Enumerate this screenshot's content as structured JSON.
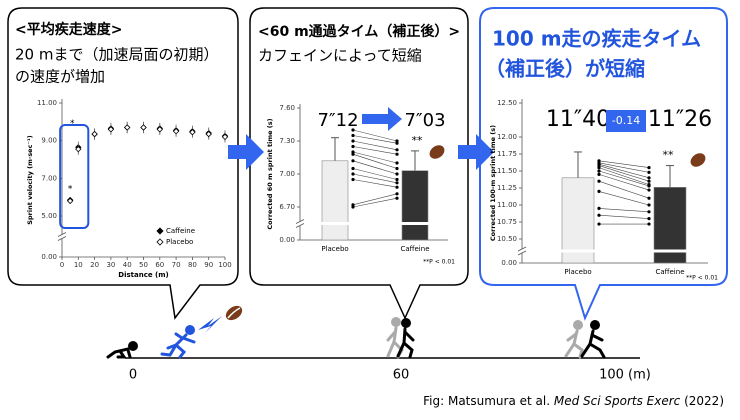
{
  "chart_data": [
    {
      "type": "scatter",
      "title": "<平均疾走速度>",
      "subtitle": [
        "20 mまで（加速局面の初期）",
        "の速度が増加"
      ],
      "x_label": "Distance (m)",
      "y_label": "Sprint velocity (m·sec⁻¹)",
      "x": [
        5,
        10,
        20,
        30,
        40,
        50,
        60,
        70,
        80,
        90,
        100
      ],
      "series": [
        {
          "name": "Caffeine",
          "color": "#000000",
          "marker": "filled",
          "values": [
            5.85,
            8.65,
            9.35,
            9.65,
            9.7,
            9.7,
            9.65,
            9.55,
            9.5,
            9.4,
            9.25
          ],
          "errors": [
            0.15,
            0.3,
            0.3,
            0.3,
            0.3,
            0.3,
            0.3,
            0.3,
            0.3,
            0.3,
            0.3
          ]
        },
        {
          "name": "Placebo",
          "color": "#000000",
          "marker": "open",
          "values": [
            5.8,
            8.55,
            9.35,
            9.6,
            9.7,
            9.7,
            9.6,
            9.5,
            9.45,
            9.35,
            9.2
          ],
          "errors": [
            0.15,
            0.3,
            0.3,
            0.3,
            0.3,
            0.3,
            0.3,
            0.3,
            0.3,
            0.3,
            0.3
          ]
        }
      ],
      "xlim": [
        0,
        100
      ],
      "xticks": [
        0,
        10,
        20,
        30,
        40,
        50,
        60,
        70,
        80,
        90,
        100
      ],
      "ylim": [
        0,
        11
      ],
      "axis_break": [
        0,
        5
      ],
      "yticks": [
        {
          "value": 0,
          "label": "0.00"
        },
        {
          "value": 5,
          "label": "5.00"
        },
        {
          "value": 7,
          "label": "7.00"
        },
        {
          "value": 9,
          "label": "9.00"
        },
        {
          "value": 11,
          "label": "11.00"
        }
      ],
      "annotations": [
        "*",
        "*"
      ],
      "highlight_color": "#2255dd",
      "legend": "lower right"
    },
    {
      "type": "bar",
      "title": "<60 m通過タイム（補正後）>",
      "subtitle": [
        "カフェインによって短縮"
      ],
      "y_label": "Corrected 60 m sprint time (s)",
      "categories": [
        "Placebo",
        "Caffeine"
      ],
      "values": [
        7.12,
        7.03
      ],
      "errors": [
        0.21,
        0.18
      ],
      "colors": [
        "#eeeeee",
        "#333333"
      ],
      "individual_values": [
        [
          7.4,
          7.35,
          7.3,
          7.25,
          7.2,
          7.18,
          7.12,
          7.05,
          7.0,
          6.95,
          6.72,
          6.7
        ],
        [
          7.3,
          7.28,
          7.22,
          7.18,
          7.1,
          7.05,
          7.0,
          6.95,
          6.92,
          6.88,
          6.82,
          6.78
        ]
      ],
      "ylim": [
        0,
        7.6
      ],
      "axis_break": [
        0,
        6.7
      ],
      "yticks": [
        {
          "value": 0,
          "label": "0.00"
        },
        {
          "value": 6.7,
          "label": "6.70"
        },
        {
          "value": 7,
          "label": "7.00"
        },
        {
          "value": 7.3,
          "label": "7.30"
        },
        {
          "value": 7.6,
          "label": "7.60"
        }
      ],
      "annotations": [
        "7″12",
        "7″03",
        "**",
        "**P < 0.01"
      ],
      "accent_color": "#3366ee"
    },
    {
      "type": "bar",
      "title": [
        "100 m走の疾走タイム",
        "（補正後）が短縮"
      ],
      "title_color": "#2255dd",
      "y_label": "Corrected 100-m sprint time (s)",
      "categories": [
        "Placebo",
        "Caffeine"
      ],
      "values": [
        11.4,
        11.26
      ],
      "errors": [
        0.38,
        0.32
      ],
      "colors": [
        "#eeeeee",
        "#333333"
      ],
      "individual_values": [
        [
          11.65,
          11.62,
          11.6,
          11.58,
          11.55,
          11.5,
          11.45,
          11.35,
          11.2,
          10.95,
          10.85,
          10.72
        ],
        [
          11.55,
          11.48,
          11.4,
          11.35,
          11.3,
          11.28,
          11.22,
          11.1,
          11.0,
          10.9,
          10.8,
          10.72
        ]
      ],
      "ylim": [
        0,
        12.5
      ],
      "axis_break": [
        0,
        10.5
      ],
      "yticks": [
        {
          "value": 0,
          "label": "0.00"
        },
        {
          "value": 10.5,
          "label": "10.50"
        },
        {
          "value": 10.75,
          "label": "10.75"
        },
        {
          "value": 11,
          "label": "11.00"
        },
        {
          "value": 11.25,
          "label": "11.25"
        },
        {
          "value": 11.5,
          "label": "11.50"
        },
        {
          "value": 11.75,
          "label": "11.75"
        },
        {
          "value": 12,
          "label": "12.00"
        },
        {
          "value": 12.5,
          "label": "12.50"
        }
      ],
      "annotations": [
        "11″40",
        "-0.14",
        "11″26",
        "**",
        "**P < 0.01"
      ],
      "accent_color": "#3366ee"
    }
  ],
  "track": {
    "labels": [
      "0",
      "60",
      "100 (m)"
    ]
  },
  "caption": {
    "prefix": "Fig: Matsumura et al. ",
    "journal": "Med Sci Sports Exerc",
    "suffix": " (2022)"
  }
}
